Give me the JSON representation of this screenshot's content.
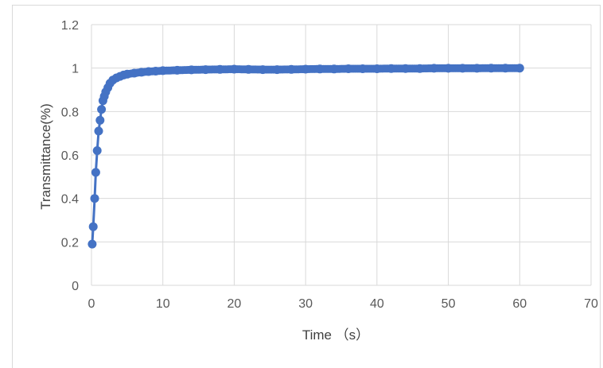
{
  "chart_data": {
    "type": "scatter",
    "title": "",
    "xlabel": "Time （s）",
    "ylabel": "Transmittance(%)",
    "xlim": [
      0,
      70
    ],
    "ylim": [
      0,
      1.2
    ],
    "xticks": [
      "0",
      "10",
      "20",
      "30",
      "40",
      "50",
      "60",
      "70"
    ],
    "yticks": [
      "0",
      "0.2",
      "0.4",
      "0.6",
      "0.8",
      "1",
      "1.2"
    ],
    "grid": true,
    "legend": "none",
    "series": [
      {
        "color": "#4472c4",
        "marker": "circle",
        "line": true,
        "x": [
          0.1,
          0.25,
          0.45,
          0.6,
          0.8,
          1.0,
          1.2,
          1.4,
          1.6,
          1.8,
          2.0,
          2.3,
          2.6,
          3.0,
          3.5,
          4.0,
          4.5,
          5.0,
          6.0,
          7.0,
          8.0,
          9.0,
          10,
          12,
          14,
          16,
          18,
          20,
          22,
          24,
          26,
          28,
          30,
          32,
          34,
          36,
          38,
          40,
          42,
          44,
          46,
          48,
          50,
          52,
          54,
          56,
          58,
          60
        ],
        "y": [
          0.19,
          0.27,
          0.4,
          0.52,
          0.62,
          0.71,
          0.76,
          0.81,
          0.85,
          0.87,
          0.89,
          0.91,
          0.93,
          0.945,
          0.955,
          0.962,
          0.968,
          0.972,
          0.977,
          0.981,
          0.984,
          0.986,
          0.988,
          0.99,
          0.992,
          0.993,
          0.994,
          0.995,
          0.994,
          0.993,
          0.993,
          0.994,
          0.995,
          0.996,
          0.996,
          0.997,
          0.997,
          0.997,
          0.998,
          0.998,
          0.998,
          0.999,
          0.999,
          0.999,
          0.999,
          1.0,
          1.0,
          1.0
        ]
      }
    ]
  }
}
